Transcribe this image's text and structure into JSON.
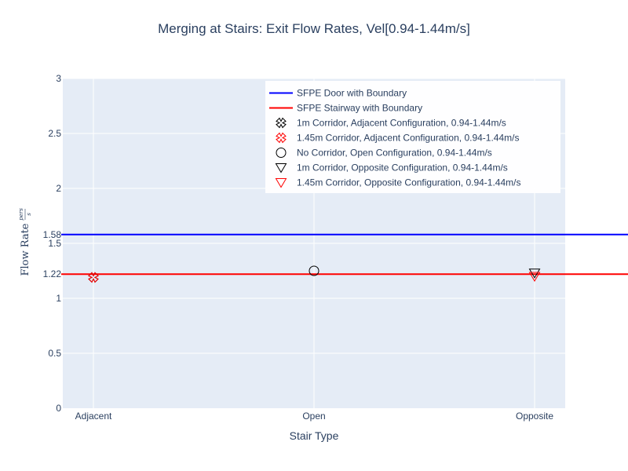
{
  "chart_data": {
    "type": "scatter",
    "title": "Merging at Stairs: Exit Flow Rates, Vel[0.94-1.44m/s]",
    "xlabel": "Stair Type",
    "ylabel": "Flow Rate",
    "ylabel_fraction": {
      "numerator": "pers",
      "denominator": "s"
    },
    "categories": [
      "Adjacent",
      "Open",
      "Opposite"
    ],
    "ylim": [
      0,
      3
    ],
    "y_ticks": [
      0,
      0.5,
      1,
      1.5,
      2,
      2.5,
      3
    ],
    "y_extra_ticks": [
      1.22,
      1.58
    ],
    "grid": true,
    "legend_position": "top-right",
    "reference_lines": [
      {
        "name": "SFPE Door with Boundary",
        "y": 1.58,
        "color": "#0000ff"
      },
      {
        "name": "SFPE Stairway with Boundary",
        "y": 1.22,
        "color": "#ff0000"
      }
    ],
    "series": [
      {
        "name": "1m Corridor, Adjacent Configuration, 0.94-1.44m/s",
        "marker": "x-open",
        "color": "#000000",
        "x": [
          "Adjacent"
        ],
        "y": [
          1.19
        ]
      },
      {
        "name": "1.45m Corridor, Adjacent Configuration, 0.94-1.44m/s",
        "marker": "x-open",
        "color": "#ff0000",
        "x": [
          "Adjacent"
        ],
        "y": [
          1.19
        ]
      },
      {
        "name": "No Corridor, Open Configuration, 0.94-1.44m/s",
        "marker": "circle-open",
        "color": "#000000",
        "x": [
          "Open"
        ],
        "y": [
          1.25
        ]
      },
      {
        "name": "1m Corridor, Opposite Configuration, 0.94-1.44m/s",
        "marker": "triangle-down-open",
        "color": "#000000",
        "x": [
          "Opposite"
        ],
        "y": [
          1.23
        ]
      },
      {
        "name": "1.45m Corridor, Opposite Configuration, 0.94-1.44m/s",
        "marker": "triangle-down-open",
        "color": "#ff0000",
        "x": [
          "Opposite"
        ],
        "y": [
          1.2
        ]
      }
    ],
    "colors": {
      "plot_bg": "#e5ecf6",
      "grid": "#ffffff",
      "text": "#2a3f5f"
    }
  }
}
